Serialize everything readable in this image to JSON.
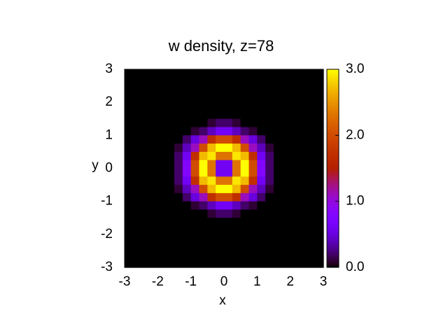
{
  "chart_data": {
    "type": "heatmap",
    "title": "w density, z=78",
    "xlabel": "x",
    "ylabel": "y",
    "xlim": [
      -3,
      3
    ],
    "ylim": [
      -3,
      3
    ],
    "xticks": [
      -3,
      -2,
      -1,
      0,
      1,
      2,
      3
    ],
    "yticks": [
      -3,
      -2,
      -1,
      0,
      1,
      2,
      3
    ],
    "zlim": [
      0,
      3
    ],
    "zticks": [
      {
        "value": 0,
        "label": "0.0"
      },
      {
        "value": 1,
        "label": "1.0"
      },
      {
        "value": 2,
        "label": "2.0"
      },
      {
        "value": 3,
        "label": "3.0"
      }
    ],
    "palette": "rgbformulae 7,5,15",
    "z": [
      [
        0,
        0,
        0,
        0,
        0,
        0,
        0,
        0,
        0,
        0,
        0,
        0,
        0,
        0,
        0,
        0,
        0,
        0,
        0,
        0,
        0,
        0,
        0,
        0
      ],
      [
        0,
        0,
        0,
        0,
        0,
        0,
        0,
        0,
        0,
        0,
        0,
        0,
        0,
        0,
        0,
        0,
        0,
        0,
        0,
        0,
        0,
        0,
        0,
        0
      ],
      [
        0,
        0,
        0,
        0,
        0,
        0,
        0,
        0,
        0,
        0,
        0,
        0,
        0,
        0,
        0,
        0,
        0,
        0,
        0,
        0,
        0,
        0,
        0,
        0
      ],
      [
        0,
        0,
        0,
        0,
        0,
        0,
        0,
        0,
        0,
        0,
        0,
        0,
        0,
        0,
        0,
        0,
        0,
        0,
        0,
        0,
        0,
        0,
        0,
        0
      ],
      [
        0,
        0,
        0,
        0,
        0,
        0,
        0,
        0,
        0,
        0,
        0,
        0,
        0,
        0,
        0,
        0,
        0,
        0,
        0,
        0,
        0,
        0,
        0,
        0
      ],
      [
        0,
        0,
        0,
        0,
        0,
        0,
        0,
        0,
        0,
        0,
        0,
        0,
        0,
        0,
        0,
        0,
        0,
        0,
        0,
        0,
        0,
        0,
        0,
        0
      ],
      [
        0,
        0,
        0,
        0,
        0,
        0,
        0,
        0,
        0,
        0,
        0.1,
        0.2,
        0.2,
        0.1,
        0,
        0,
        0,
        0,
        0,
        0,
        0,
        0,
        0,
        0
      ],
      [
        0,
        0,
        0,
        0,
        0,
        0,
        0,
        0,
        0.1,
        0.2,
        0.4,
        0.6,
        0.6,
        0.4,
        0.2,
        0.1,
        0,
        0,
        0,
        0,
        0,
        0,
        0,
        0
      ],
      [
        0,
        0,
        0,
        0,
        0,
        0,
        0,
        0.2,
        0.5,
        1.1,
        1.7,
        2.0,
        2.0,
        1.7,
        1.1,
        0.5,
        0.2,
        0,
        0,
        0,
        0,
        0,
        0,
        0
      ],
      [
        0,
        0,
        0,
        0,
        0,
        0,
        0.1,
        0.4,
        1.1,
        2.0,
        2.7,
        3.0,
        3.0,
        2.7,
        2.0,
        1.1,
        0.4,
        0.1,
        0,
        0,
        0,
        0,
        0,
        0
      ],
      [
        0,
        0,
        0,
        0,
        0,
        0,
        0.2,
        0.6,
        1.7,
        2.7,
        2.9,
        2.3,
        2.3,
        2.9,
        2.7,
        1.7,
        0.6,
        0.2,
        0,
        0,
        0,
        0,
        0,
        0
      ],
      [
        0,
        0,
        0,
        0,
        0,
        0,
        0.2,
        0.8,
        2.0,
        3.0,
        2.3,
        0.6,
        0.6,
        2.3,
        3.0,
        2.0,
        0.8,
        0.2,
        0,
        0,
        0,
        0,
        0,
        0
      ],
      [
        0,
        0,
        0,
        0,
        0,
        0,
        0.2,
        0.8,
        2.0,
        3.0,
        2.3,
        0.6,
        0.6,
        2.3,
        3.0,
        2.0,
        0.8,
        0.2,
        0,
        0,
        0,
        0,
        0,
        0
      ],
      [
        0,
        0,
        0,
        0,
        0,
        0,
        0.2,
        0.6,
        1.7,
        2.7,
        2.9,
        2.3,
        2.3,
        2.9,
        2.7,
        1.7,
        0.6,
        0.2,
        0,
        0,
        0,
        0,
        0,
        0
      ],
      [
        0,
        0,
        0,
        0,
        0,
        0,
        0.1,
        0.4,
        1.1,
        2.0,
        2.7,
        3.0,
        3.0,
        2.7,
        2.0,
        1.1,
        0.4,
        0.1,
        0,
        0,
        0,
        0,
        0,
        0
      ],
      [
        0,
        0,
        0,
        0,
        0,
        0,
        0,
        0.2,
        0.5,
        1.1,
        1.7,
        2.0,
        2.0,
        1.7,
        1.1,
        0.5,
        0.2,
        0,
        0,
        0,
        0,
        0,
        0,
        0
      ],
      [
        0,
        0,
        0,
        0,
        0,
        0,
        0,
        0,
        0.1,
        0.2,
        0.4,
        0.6,
        0.6,
        0.4,
        0.2,
        0.1,
        0,
        0,
        0,
        0,
        0,
        0,
        0,
        0
      ],
      [
        0,
        0,
        0,
        0,
        0,
        0,
        0,
        0,
        0,
        0,
        0.1,
        0.2,
        0.2,
        0.1,
        0,
        0,
        0,
        0,
        0,
        0,
        0,
        0,
        0,
        0
      ],
      [
        0,
        0,
        0,
        0,
        0,
        0,
        0,
        0,
        0,
        0,
        0,
        0,
        0,
        0,
        0,
        0,
        0,
        0,
        0,
        0,
        0,
        0,
        0,
        0
      ],
      [
        0,
        0,
        0,
        0,
        0,
        0,
        0,
        0,
        0,
        0,
        0,
        0,
        0,
        0,
        0,
        0,
        0,
        0,
        0,
        0,
        0,
        0,
        0,
        0
      ],
      [
        0,
        0,
        0,
        0,
        0,
        0,
        0,
        0,
        0,
        0,
        0,
        0,
        0,
        0,
        0,
        0,
        0,
        0,
        0,
        0,
        0,
        0,
        0,
        0
      ],
      [
        0,
        0,
        0,
        0,
        0,
        0,
        0,
        0,
        0,
        0,
        0,
        0,
        0,
        0,
        0,
        0,
        0,
        0,
        0,
        0,
        0,
        0,
        0,
        0
      ],
      [
        0,
        0,
        0,
        0,
        0,
        0,
        0,
        0,
        0,
        0,
        0,
        0,
        0,
        0,
        0,
        0,
        0,
        0,
        0,
        0,
        0,
        0,
        0,
        0
      ],
      [
        0,
        0,
        0,
        0,
        0,
        0,
        0,
        0,
        0,
        0,
        0,
        0,
        0,
        0,
        0,
        0,
        0,
        0,
        0,
        0,
        0,
        0,
        0,
        0
      ]
    ]
  }
}
